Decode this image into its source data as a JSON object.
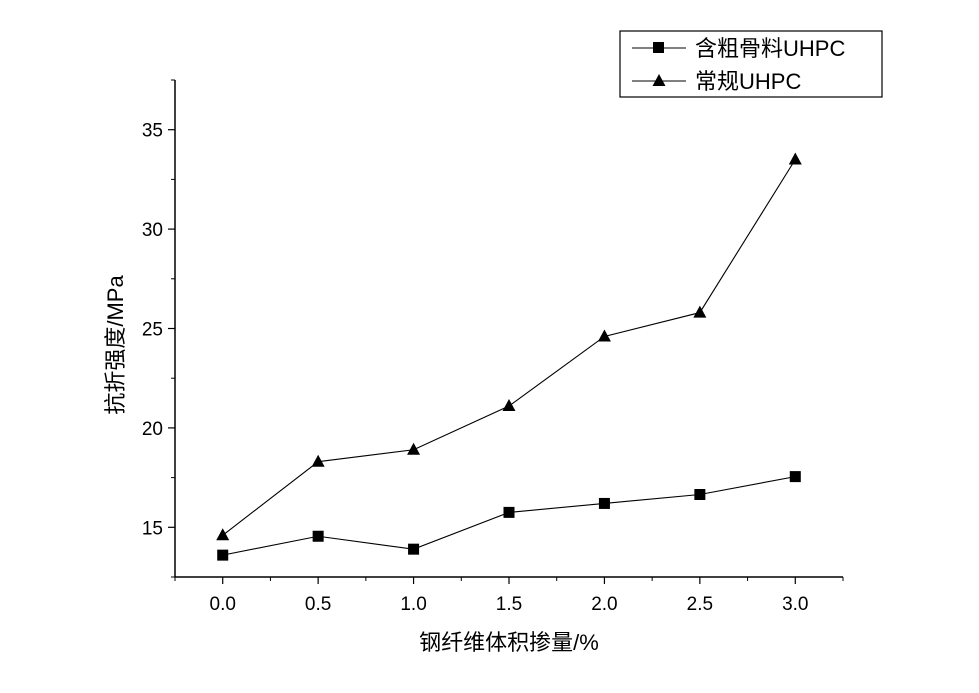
{
  "chart_data": {
    "type": "line",
    "title": "",
    "xlabel": "钢纤维体积掺量/%",
    "ylabel": "抗折强度/MPa",
    "x": [
      0.0,
      0.5,
      1.0,
      1.5,
      2.0,
      2.5,
      3.0
    ],
    "x_tick_labels": [
      "0.0",
      "0.5",
      "1.0",
      "1.5",
      "2.0",
      "2.5",
      "3.0"
    ],
    "y_ticks": [
      15,
      20,
      25,
      30,
      35
    ],
    "y_tick_labels": [
      "15",
      "20",
      "25",
      "30",
      "35"
    ],
    "xlim": [
      -0.25,
      3.25
    ],
    "ylim": [
      12.5,
      37.5
    ],
    "grid": false,
    "legend_position": "top-right",
    "series": [
      {
        "name": "含粗骨料UHPC",
        "marker": "square",
        "color": "#000000",
        "values": [
          13.6,
          14.55,
          13.9,
          15.75,
          16.2,
          16.65,
          17.55
        ]
      },
      {
        "name": "常规UHPC",
        "marker": "triangle",
        "color": "#000000",
        "values": [
          14.6,
          18.3,
          18.9,
          21.1,
          24.6,
          25.8,
          33.5
        ]
      }
    ]
  }
}
